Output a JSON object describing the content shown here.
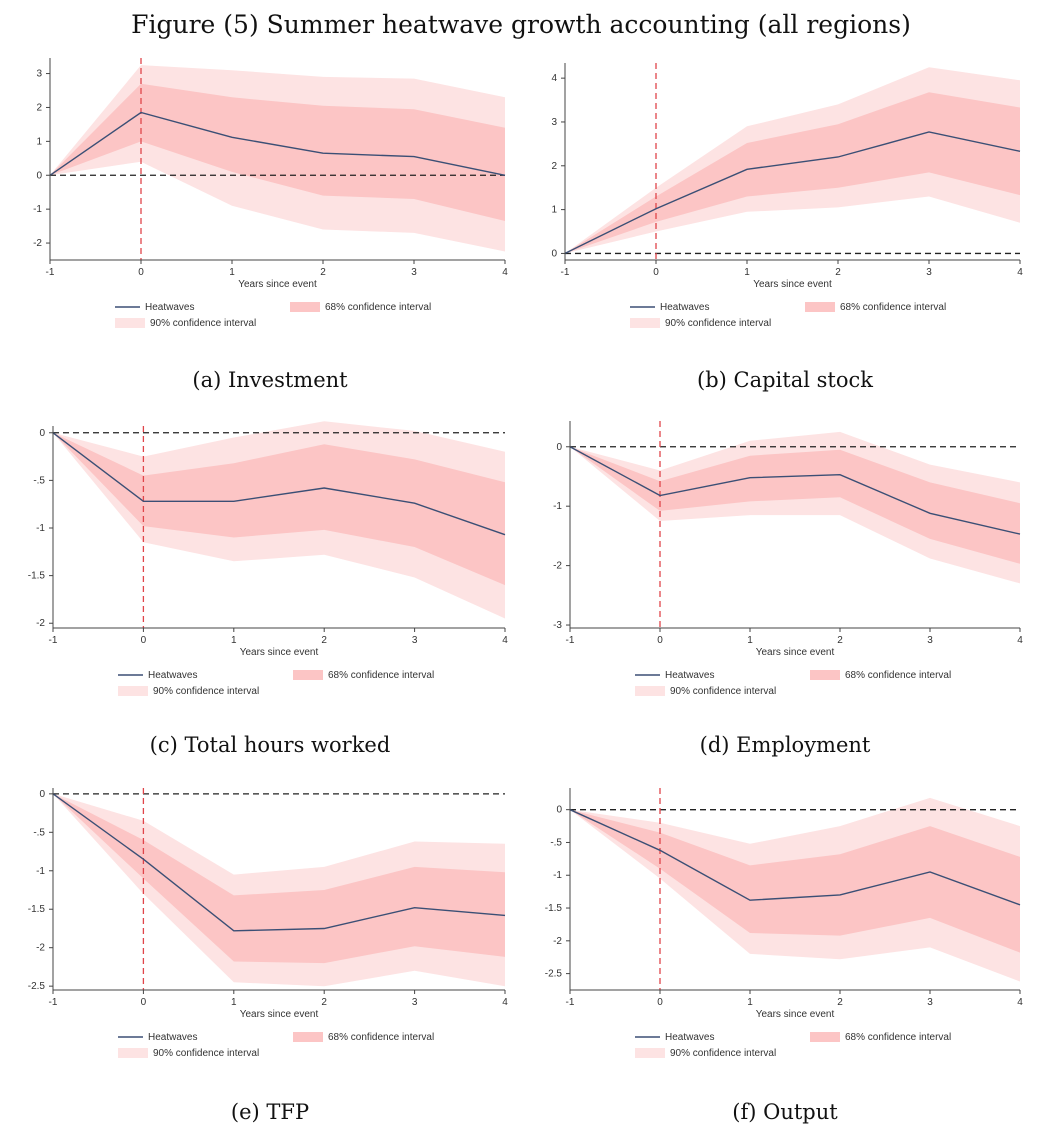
{
  "figure_title": "Figure (5)   Summer heatwave growth accounting (all regions)",
  "colors": {
    "ci90": "#fde3e3",
    "ci68": "#fcc5c5",
    "line": "#3b4f75",
    "event_line": "#e0454a",
    "zero_line": "#222222",
    "axis": "#444444"
  },
  "chart_data": [
    {
      "id": "a",
      "type": "line",
      "caption": "(a) Investment",
      "xlabel": "Years since event",
      "x": [
        -1,
        0,
        1,
        2,
        3,
        4
      ],
      "xlim": [
        -1,
        4
      ],
      "ylim": [
        -2.5,
        3.4
      ],
      "yticks": [
        -2,
        -1,
        0,
        1,
        2,
        3
      ],
      "ytick_labels": [
        "-2",
        "-1",
        "0",
        "1",
        "2",
        "3"
      ],
      "series": [
        {
          "name": "Heatwaves",
          "values": [
            0,
            1.85,
            1.12,
            0.65,
            0.55,
            0.0
          ]
        }
      ],
      "ci68": {
        "lower": [
          0,
          1.0,
          0.1,
          -0.6,
          -0.7,
          -1.35
        ],
        "upper": [
          0,
          2.7,
          2.3,
          2.05,
          1.95,
          1.4
        ]
      },
      "ci90": {
        "lower": [
          0,
          0.4,
          -0.9,
          -1.6,
          -1.7,
          -2.25
        ],
        "upper": [
          0,
          3.25,
          3.1,
          2.9,
          2.85,
          2.3
        ]
      },
      "legend": [
        "Heatwaves",
        "68% confidence interval",
        "90% confidence interval"
      ]
    },
    {
      "id": "b",
      "type": "line",
      "caption": "(b) Capital stock",
      "xlabel": "Years since event",
      "x": [
        -1,
        0,
        1,
        2,
        3,
        4
      ],
      "xlim": [
        -1,
        4
      ],
      "ylim": [
        -0.15,
        4.3
      ],
      "yticks": [
        0,
        1,
        2,
        3,
        4
      ],
      "ytick_labels": [
        "0",
        "1",
        "2",
        "3",
        "4"
      ],
      "series": [
        {
          "name": "Heatwaves",
          "values": [
            0,
            1.02,
            1.92,
            2.2,
            2.77,
            2.33
          ]
        }
      ],
      "ci68": {
        "lower": [
          0,
          0.72,
          1.3,
          1.5,
          1.85,
          1.33
        ],
        "upper": [
          0,
          1.3,
          2.52,
          2.95,
          3.68,
          3.33
        ]
      },
      "ci90": {
        "lower": [
          0,
          0.5,
          0.95,
          1.05,
          1.3,
          0.7
        ],
        "upper": [
          0,
          1.5,
          2.9,
          3.4,
          4.25,
          3.95
        ]
      },
      "legend": [
        "Heatwaves",
        "68% confidence interval",
        "90% confidence interval"
      ]
    },
    {
      "id": "c",
      "type": "line",
      "caption": "(c) Total hours worked",
      "xlabel": "Years since event",
      "x": [
        -1,
        0,
        1,
        2,
        3,
        4
      ],
      "xlim": [
        -1,
        4
      ],
      "ylim": [
        -2.05,
        0.05
      ],
      "yticks": [
        -2,
        -1.5,
        -1,
        -0.5,
        0
      ],
      "ytick_labels": [
        "-2",
        "-1.5",
        "-1",
        "-.5",
        "0"
      ],
      "series": [
        {
          "name": "Heatwaves",
          "values": [
            0,
            -0.72,
            -0.72,
            -0.58,
            -0.74,
            -1.07
          ]
        }
      ],
      "ci68": {
        "lower": [
          0,
          -0.98,
          -1.1,
          -1.02,
          -1.2,
          -1.6
        ],
        "upper": [
          0,
          -0.45,
          -0.32,
          -0.12,
          -0.28,
          -0.52
        ]
      },
      "ci90": {
        "lower": [
          0,
          -1.15,
          -1.35,
          -1.28,
          -1.52,
          -1.95
        ],
        "upper": [
          0,
          -0.25,
          -0.05,
          0.12,
          0.02,
          -0.2
        ]
      },
      "legend": [
        "Heatwaves",
        "68% confidence interval",
        "90% confidence interval"
      ]
    },
    {
      "id": "d",
      "type": "line",
      "caption": "(d) Employment",
      "xlabel": "Years since event",
      "x": [
        -1,
        0,
        1,
        2,
        3,
        4
      ],
      "xlim": [
        -1,
        4
      ],
      "ylim": [
        -3.05,
        0.4
      ],
      "yticks": [
        -3,
        -2,
        -1,
        0
      ],
      "ytick_labels": [
        "-3",
        "-2",
        "-1",
        "0"
      ],
      "series": [
        {
          "name": "Heatwaves",
          "values": [
            0,
            -0.82,
            -0.52,
            -0.47,
            -1.12,
            -1.47
          ]
        }
      ],
      "ci68": {
        "lower": [
          0,
          -1.08,
          -0.92,
          -0.85,
          -1.55,
          -1.97
        ],
        "upper": [
          0,
          -0.58,
          -0.15,
          -0.05,
          -0.6,
          -0.95
        ]
      },
      "ci90": {
        "lower": [
          0,
          -1.25,
          -1.15,
          -1.15,
          -1.88,
          -2.3
        ],
        "upper": [
          0,
          -0.4,
          0.1,
          0.25,
          -0.3,
          -0.6
        ]
      },
      "legend": [
        "Heatwaves",
        "68% confidence interval",
        "90% confidence interval"
      ]
    },
    {
      "id": "e",
      "type": "line",
      "caption": "(e) TFP",
      "xlabel": "Years since event",
      "x": [
        -1,
        0,
        1,
        2,
        3,
        4
      ],
      "xlim": [
        -1,
        4
      ],
      "ylim": [
        -2.55,
        0.05
      ],
      "yticks": [
        -2.5,
        -2,
        -1.5,
        -1,
        -0.5,
        0
      ],
      "ytick_labels": [
        "-2.5",
        "-2",
        "-1.5",
        "-1",
        "-.5",
        "0"
      ],
      "series": [
        {
          "name": "Heatwaves",
          "values": [
            0,
            -0.85,
            -1.78,
            -1.75,
            -1.48,
            -1.58
          ]
        }
      ],
      "ci68": {
        "lower": [
          0,
          -1.1,
          -2.18,
          -2.2,
          -1.98,
          -2.12
        ],
        "upper": [
          0,
          -0.6,
          -1.32,
          -1.25,
          -0.95,
          -1.02
        ]
      },
      "ci90": {
        "lower": [
          0,
          -1.3,
          -2.45,
          -2.5,
          -2.3,
          -2.5
        ],
        "upper": [
          0,
          -0.35,
          -1.05,
          -0.95,
          -0.62,
          -0.65
        ]
      },
      "legend": [
        "Heatwaves",
        "68% confidence interval",
        "90% confidence interval"
      ]
    },
    {
      "id": "f",
      "type": "line",
      "caption": "(f) Output",
      "xlabel": "Years since event",
      "x": [
        -1,
        0,
        1,
        2,
        3,
        4
      ],
      "xlim": [
        -1,
        4
      ],
      "ylim": [
        -2.75,
        0.3
      ],
      "yticks": [
        -2.5,
        -2,
        -1.5,
        -1,
        -0.5,
        0
      ],
      "ytick_labels": [
        "-2.5",
        "-2",
        "-1.5",
        "-1",
        "-.5",
        "0"
      ],
      "series": [
        {
          "name": "Heatwaves",
          "values": [
            0,
            -0.62,
            -1.38,
            -1.3,
            -0.95,
            -1.45
          ]
        }
      ],
      "ci68": {
        "lower": [
          0,
          -0.9,
          -1.88,
          -1.92,
          -1.65,
          -2.18
        ],
        "upper": [
          0,
          -0.35,
          -0.85,
          -0.68,
          -0.25,
          -0.72
        ]
      },
      "ci90": {
        "lower": [
          0,
          -1.05,
          -2.2,
          -2.28,
          -2.1,
          -2.62
        ],
        "upper": [
          0,
          -0.2,
          -0.52,
          -0.25,
          0.18,
          -0.25
        ]
      },
      "legend": [
        "Heatwaves",
        "68% confidence interval",
        "90% confidence interval"
      ]
    }
  ]
}
